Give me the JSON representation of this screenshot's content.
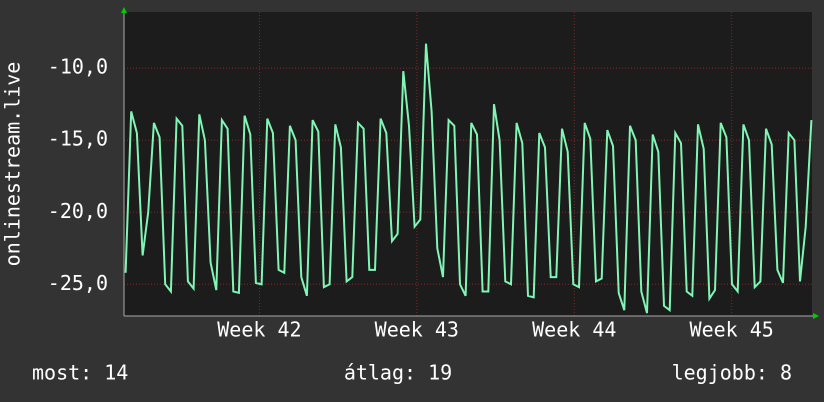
{
  "chart_data": {
    "type": "line",
    "y_label": "onlinestream.live",
    "annotations": [
      "most: 14",
      "átlag: 19",
      "legjobb: 8"
    ],
    "xlim": [
      41.14,
      45.51
    ],
    "ylim": [
      -27.2,
      -6.1
    ],
    "xticks": [
      {
        "value": 42,
        "label": "Week 42"
      },
      {
        "value": 43,
        "label": "Week 43"
      },
      {
        "value": 44,
        "label": "Week 44"
      },
      {
        "value": 45,
        "label": "Week 45"
      }
    ],
    "yticks": [
      {
        "value": -25,
        "label": "-25,0"
      },
      {
        "value": -20,
        "label": "-20,0"
      },
      {
        "value": -15,
        "label": "-15,0"
      },
      {
        "value": -10,
        "label": "-10,0"
      }
    ],
    "grid": true,
    "series": [
      {
        "color": "#80f5b4",
        "x": [
          41.15,
          41.186,
          41.222,
          41.258,
          41.294,
          41.33,
          41.366,
          41.402,
          41.438,
          41.474,
          41.51,
          41.546,
          41.582,
          41.618,
          41.654,
          41.69,
          41.726,
          41.762,
          41.798,
          41.834,
          41.87,
          41.906,
          41.942,
          41.978,
          42.014,
          42.05,
          42.086,
          42.122,
          42.158,
          42.194,
          42.23,
          42.266,
          42.302,
          42.338,
          42.374,
          42.41,
          42.446,
          42.482,
          42.518,
          42.554,
          42.59,
          42.626,
          42.662,
          42.698,
          42.734,
          42.77,
          42.806,
          42.842,
          42.878,
          42.914,
          42.95,
          42.986,
          43.022,
          43.058,
          43.094,
          43.13,
          43.166,
          43.202,
          43.238,
          43.274,
          43.31,
          43.346,
          43.382,
          43.418,
          43.454,
          43.49,
          43.526,
          43.562,
          43.598,
          43.634,
          43.67,
          43.706,
          43.742,
          43.778,
          43.814,
          43.85,
          43.886,
          43.922,
          43.958,
          43.994,
          44.03,
          44.066,
          44.102,
          44.138,
          44.174,
          44.21,
          44.246,
          44.282,
          44.318,
          44.354,
          44.39,
          44.426,
          44.462,
          44.498,
          44.534,
          44.57,
          44.606,
          44.642,
          44.678,
          44.714,
          44.75,
          44.786,
          44.822,
          44.858,
          44.894,
          44.93,
          44.966,
          45.002,
          45.038,
          45.074,
          45.11,
          45.146,
          45.182,
          45.218,
          45.254,
          45.29,
          45.326,
          45.362,
          45.398,
          45.434,
          45.47,
          45.506
        ],
        "values": [
          -24.2,
          -13.0,
          -14.5,
          -23.0,
          -20.0,
          -13.8,
          -14.8,
          -25.0,
          -25.5,
          -13.5,
          -14.0,
          -24.8,
          -25.3,
          -13.2,
          -15.0,
          -23.5,
          -25.4,
          -13.6,
          -14.2,
          -25.5,
          -25.6,
          -13.3,
          -14.6,
          -24.9,
          -25.0,
          -13.5,
          -14.5,
          -24.0,
          -24.2,
          -14.0,
          -15.0,
          -24.5,
          -25.8,
          -13.6,
          -14.4,
          -25.2,
          -25.0,
          -13.9,
          -15.5,
          -24.8,
          -24.5,
          -13.8,
          -14.2,
          -24.0,
          -24.0,
          -13.5,
          -14.5,
          -22.0,
          -21.5,
          -10.2,
          -14.0,
          -21.0,
          -20.5,
          -8.3,
          -13.0,
          -22.5,
          -24.5,
          -13.6,
          -14.0,
          -25.0,
          -25.8,
          -13.8,
          -14.6,
          -25.5,
          -25.5,
          -12.5,
          -15.0,
          -24.8,
          -25.0,
          -13.8,
          -15.2,
          -25.8,
          -25.9,
          -14.5,
          -15.5,
          -24.5,
          -24.5,
          -14.2,
          -15.8,
          -25.0,
          -25.2,
          -13.8,
          -14.9,
          -24.8,
          -24.6,
          -14.3,
          -15.4,
          -25.6,
          -26.8,
          -14.0,
          -15.0,
          -25.5,
          -27.0,
          -14.6,
          -15.8,
          -26.5,
          -26.8,
          -14.5,
          -15.2,
          -25.5,
          -25.8,
          -13.9,
          -15.6,
          -26.0,
          -25.4,
          -13.8,
          -14.8,
          -25.0,
          -25.5,
          -13.9,
          -15.0,
          -25.2,
          -24.8,
          -14.2,
          -15.3,
          -24.0,
          -24.9,
          -14.5,
          -15.0,
          -24.8,
          -21.0,
          -13.6
        ]
      }
    ]
  }
}
